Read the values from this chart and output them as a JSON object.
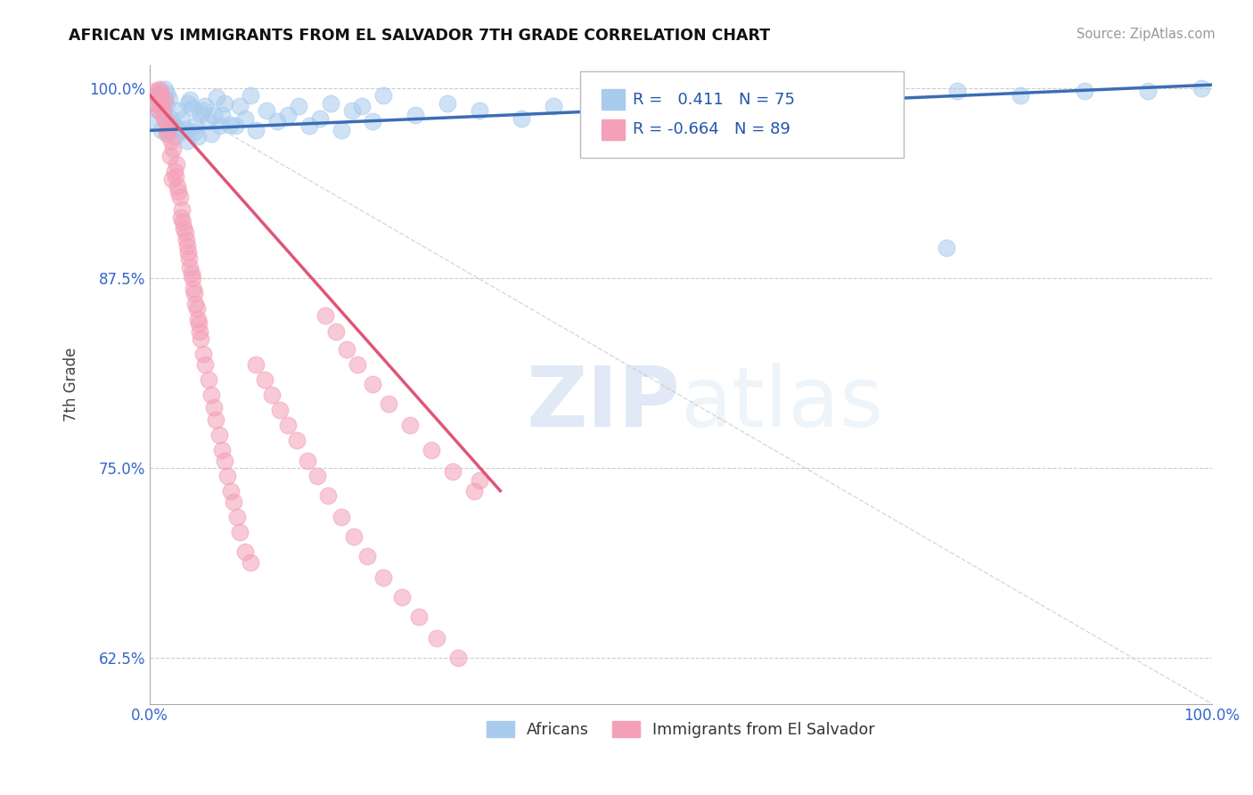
{
  "title": "AFRICAN VS IMMIGRANTS FROM EL SALVADOR 7TH GRADE CORRELATION CHART",
  "source": "Source: ZipAtlas.com",
  "ylabel": "7th Grade",
  "xlim": [
    0.0,
    1.0
  ],
  "ylim": [
    0.595,
    1.015
  ],
  "yticks": [
    0.625,
    0.75,
    0.875,
    1.0
  ],
  "ytick_labels": [
    "62.5%",
    "75.0%",
    "87.5%",
    "100.0%"
  ],
  "xticks": [
    0.0,
    1.0
  ],
  "xtick_labels": [
    "0.0%",
    "100.0%"
  ],
  "blue_R": 0.411,
  "blue_N": 75,
  "pink_R": -0.664,
  "pink_N": 89,
  "blue_color": "#A8CBEE",
  "pink_color": "#F4A0B8",
  "blue_line_color": "#3B6DB5",
  "pink_line_color": "#E05575",
  "watermark_zip": "ZIP",
  "watermark_atlas": "atlas",
  "legend_label_blue": "Africans",
  "legend_label_pink": "Immigrants from El Salvador",
  "blue_line_x0": 0.0,
  "blue_line_y0": 0.972,
  "blue_line_x1": 1.0,
  "blue_line_y1": 1.002,
  "pink_line_x0": 0.0,
  "pink_line_y0": 0.995,
  "pink_line_x1": 0.33,
  "pink_line_y1": 0.735,
  "ref_line_x0": 0.0,
  "ref_line_y0": 1.0,
  "ref_line_x1": 1.0,
  "ref_line_y1": 0.595,
  "blue_scatter_x": [
    0.005,
    0.008,
    0.012,
    0.015,
    0.018,
    0.008,
    0.01,
    0.013,
    0.016,
    0.02,
    0.006,
    0.011,
    0.014,
    0.017,
    0.022,
    0.025,
    0.028,
    0.019,
    0.023,
    0.026,
    0.03,
    0.033,
    0.036,
    0.04,
    0.043,
    0.048,
    0.035,
    0.038,
    0.042,
    0.045,
    0.05,
    0.055,
    0.06,
    0.065,
    0.07,
    0.075,
    0.052,
    0.058,
    0.063,
    0.068,
    0.08,
    0.085,
    0.09,
    0.095,
    0.1,
    0.11,
    0.12,
    0.13,
    0.14,
    0.15,
    0.17,
    0.19,
    0.21,
    0.16,
    0.18,
    0.2,
    0.22,
    0.25,
    0.28,
    0.31,
    0.35,
    0.38,
    0.42,
    0.46,
    0.5,
    0.54,
    0.59,
    0.64,
    0.7,
    0.76,
    0.82,
    0.88,
    0.94,
    0.99,
    0.75
  ],
  "blue_scatter_y": [
    0.99,
    0.985,
    0.992,
    0.988,
    0.993,
    0.998,
    0.995,
    0.982,
    0.996,
    0.975,
    0.978,
    0.972,
    0.999,
    0.97,
    0.976,
    0.974,
    0.971,
    0.98,
    0.968,
    0.985,
    0.979,
    0.973,
    0.99,
    0.987,
    0.975,
    0.983,
    0.965,
    0.992,
    0.971,
    0.968,
    0.985,
    0.978,
    0.982,
    0.975,
    0.99,
    0.976,
    0.988,
    0.97,
    0.994,
    0.982,
    0.975,
    0.988,
    0.98,
    0.995,
    0.972,
    0.985,
    0.978,
    0.982,
    0.988,
    0.975,
    0.99,
    0.985,
    0.978,
    0.98,
    0.972,
    0.988,
    0.995,
    0.982,
    0.99,
    0.985,
    0.98,
    0.988,
    0.992,
    0.985,
    0.99,
    0.995,
    0.988,
    0.992,
    0.995,
    0.998,
    0.995,
    0.998,
    0.998,
    1.0,
    0.895
  ],
  "pink_scatter_x": [
    0.005,
    0.008,
    0.01,
    0.006,
    0.012,
    0.009,
    0.015,
    0.011,
    0.018,
    0.014,
    0.007,
    0.013,
    0.016,
    0.02,
    0.017,
    0.022,
    0.019,
    0.025,
    0.023,
    0.008,
    0.021,
    0.026,
    0.024,
    0.028,
    0.027,
    0.03,
    0.029,
    0.032,
    0.031,
    0.034,
    0.033,
    0.036,
    0.035,
    0.038,
    0.037,
    0.04,
    0.039,
    0.042,
    0.041,
    0.044,
    0.043,
    0.046,
    0.045,
    0.048,
    0.047,
    0.05,
    0.052,
    0.055,
    0.058,
    0.06,
    0.062,
    0.065,
    0.068,
    0.07,
    0.073,
    0.076,
    0.079,
    0.082,
    0.085,
    0.09,
    0.095,
    0.1,
    0.108,
    0.115,
    0.122,
    0.13,
    0.138,
    0.148,
    0.158,
    0.168,
    0.18,
    0.192,
    0.205,
    0.22,
    0.237,
    0.253,
    0.27,
    0.29,
    0.31,
    0.165,
    0.175,
    0.185,
    0.195,
    0.21,
    0.225,
    0.245,
    0.265,
    0.285,
    0.305
  ],
  "pink_scatter_y": [
    0.998,
    0.993,
    0.996,
    0.99,
    0.985,
    0.999,
    0.978,
    0.988,
    0.975,
    0.992,
    0.995,
    0.98,
    0.97,
    0.965,
    0.972,
    0.96,
    0.955,
    0.95,
    0.945,
    0.985,
    0.94,
    0.935,
    0.942,
    0.928,
    0.932,
    0.92,
    0.915,
    0.908,
    0.912,
    0.9,
    0.905,
    0.892,
    0.896,
    0.882,
    0.888,
    0.875,
    0.878,
    0.865,
    0.868,
    0.855,
    0.858,
    0.845,
    0.848,
    0.835,
    0.84,
    0.825,
    0.818,
    0.808,
    0.798,
    0.79,
    0.782,
    0.772,
    0.762,
    0.755,
    0.745,
    0.735,
    0.728,
    0.718,
    0.708,
    0.695,
    0.688,
    0.818,
    0.808,
    0.798,
    0.788,
    0.778,
    0.768,
    0.755,
    0.745,
    0.732,
    0.718,
    0.705,
    0.692,
    0.678,
    0.665,
    0.652,
    0.638,
    0.625,
    0.742,
    0.85,
    0.84,
    0.828,
    0.818,
    0.805,
    0.792,
    0.778,
    0.762,
    0.748,
    0.735
  ]
}
